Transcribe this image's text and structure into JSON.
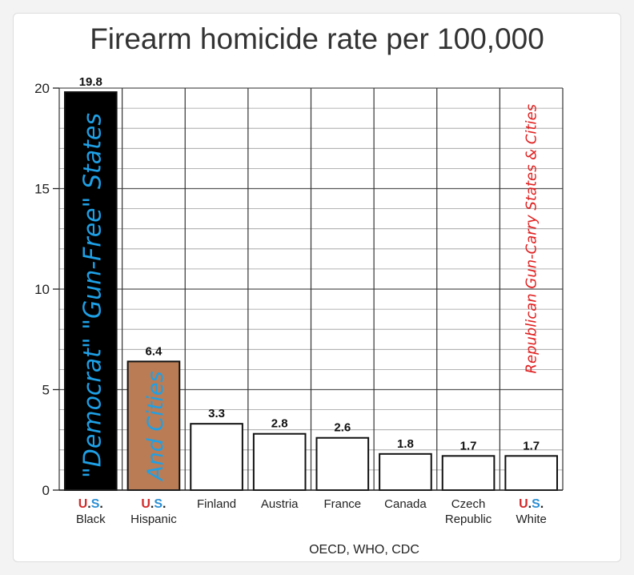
{
  "chart_data": {
    "type": "bar",
    "title": "Firearm homicide rate per 100,000",
    "categories": [
      {
        "prefix_u": "U",
        "prefix_s": "S",
        "label": "Black"
      },
      {
        "prefix_u": "U",
        "prefix_s": "S",
        "label": "Hispanic"
      },
      {
        "label": "Finland"
      },
      {
        "label": "Austria"
      },
      {
        "label": "France"
      },
      {
        "label": "Canada"
      },
      {
        "line1": "Czech",
        "line2": "Republic"
      },
      {
        "prefix_u": "U",
        "prefix_s": "S",
        "label": "White"
      }
    ],
    "values": [
      19.8,
      6.4,
      3.3,
      2.8,
      2.6,
      1.8,
      1.7,
      1.7
    ],
    "value_labels": [
      "19.8",
      "6.4",
      "3.3",
      "2.8",
      "2.6",
      "1.8",
      "1.7",
      "1.7"
    ],
    "bar_colors": [
      "#000000",
      "#b97c55",
      "#ffffff",
      "#ffffff",
      "#ffffff",
      "#ffffff",
      "#ffffff",
      "#ffffff"
    ],
    "yticks": [
      "0",
      "5",
      "10",
      "15",
      "20"
    ],
    "ylim": [
      0,
      20
    ],
    "grid": true,
    "source": "OECD, WHO, CDC",
    "annotations": {
      "left": "\"Democrat\" \"Gun-Free\" States",
      "middle": "And Cities",
      "right": "Republican Gun-Carry States & Cities"
    },
    "colors": {
      "us_u": "#d42a2a",
      "us_s": "#2a8fd4",
      "anno_blue": "#1ea0e6",
      "anno_red": "#e02020"
    }
  }
}
